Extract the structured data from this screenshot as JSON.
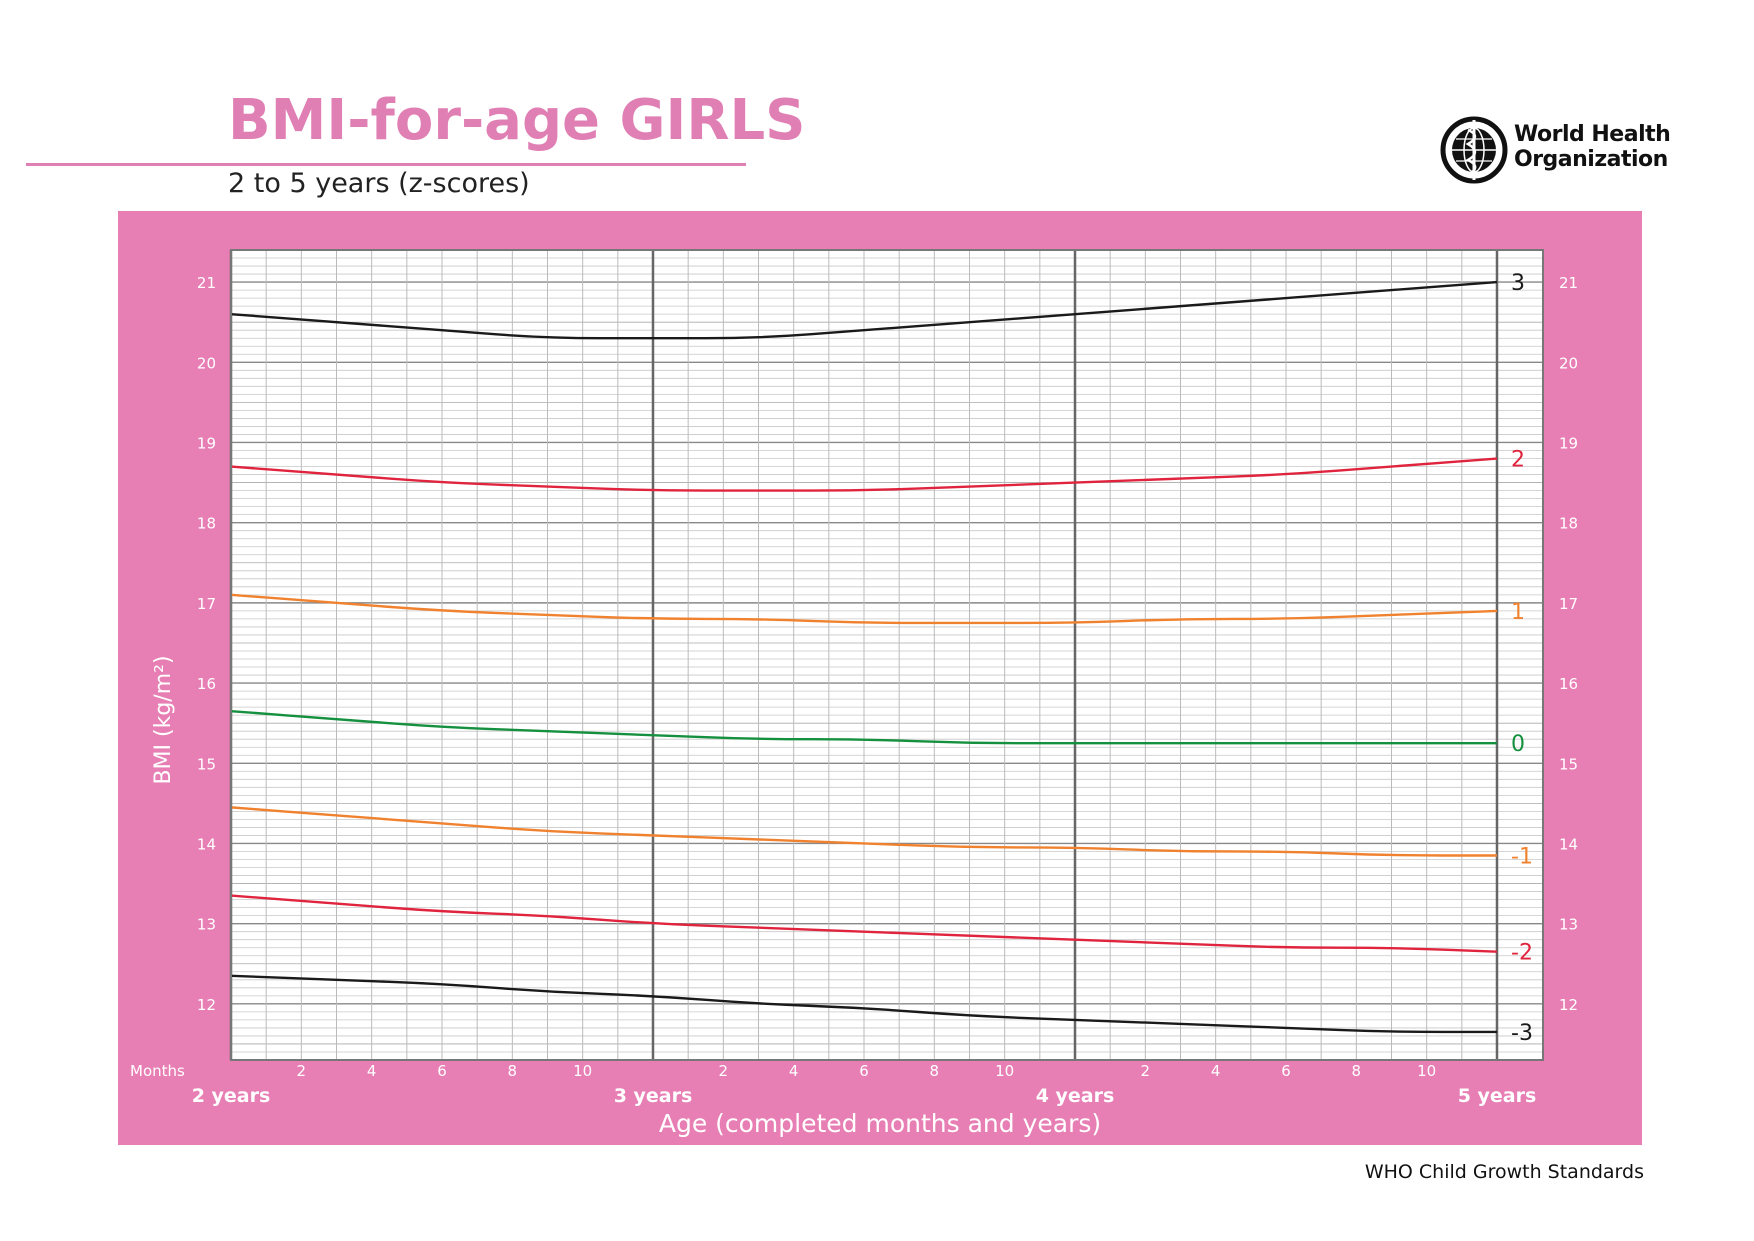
{
  "header": {
    "title": "BMI-for-age GIRLS",
    "subtitle": "2 to 5 years (z-scores)",
    "org_line1": "World Health",
    "org_line2": "Organization"
  },
  "footer": {
    "text": "WHO Child Growth Standards"
  },
  "colors": {
    "brand_pink": "#e07fb3",
    "panel_pink": "#e77fb4",
    "sd3": "#1a1a1a",
    "sd2": "#e0243e",
    "sd1": "#f0822f",
    "median": "#15903e"
  },
  "chart_data": {
    "type": "line",
    "title": "BMI-for-age GIRLS",
    "subtitle": "2 to 5 years (z-scores)",
    "ylabel": "BMI (kg/m²)",
    "xlabel": "Age (completed months and years)",
    "x_units_label": "Months",
    "ylim": [
      11.3,
      21.4
    ],
    "yticks": [
      12,
      13,
      14,
      15,
      16,
      17,
      18,
      19,
      20,
      21
    ],
    "xlim": [
      24,
      60
    ],
    "year_ticks": [
      {
        "month": 24,
        "label": "2 years"
      },
      {
        "month": 36,
        "label": "3 years"
      },
      {
        "month": 48,
        "label": "4 years"
      },
      {
        "month": 60,
        "label": "5 years"
      }
    ],
    "month_ticks": [
      2,
      4,
      6,
      8,
      10
    ],
    "grid": true,
    "x": [
      24,
      27,
      30,
      33,
      36,
      39,
      42,
      45,
      48,
      51,
      54,
      57,
      60
    ],
    "series": [
      {
        "name": "3",
        "color": "#1a1a1a",
        "values": [
          20.6,
          20.5,
          20.4,
          20.3,
          20.3,
          20.3,
          20.4,
          20.5,
          20.6,
          20.7,
          20.8,
          20.9,
          21.0
        ]
      },
      {
        "name": "2",
        "color": "#e0243e",
        "values": [
          18.7,
          18.6,
          18.5,
          18.45,
          18.4,
          18.4,
          18.4,
          18.45,
          18.5,
          18.55,
          18.6,
          18.7,
          18.8
        ]
      },
      {
        "name": "1",
        "color": "#f0822f",
        "values": [
          17.1,
          17.0,
          16.9,
          16.85,
          16.8,
          16.8,
          16.75,
          16.75,
          16.75,
          16.8,
          16.8,
          16.85,
          16.9
        ]
      },
      {
        "name": "0",
        "color": "#15903e",
        "values": [
          15.65,
          15.55,
          15.45,
          15.4,
          15.35,
          15.3,
          15.3,
          15.25,
          15.25,
          15.25,
          15.25,
          15.25,
          15.25
        ]
      },
      {
        "name": "-1",
        "color": "#f0822f",
        "values": [
          14.45,
          14.35,
          14.25,
          14.15,
          14.1,
          14.05,
          14.0,
          13.95,
          13.95,
          13.9,
          13.9,
          13.85,
          13.85
        ]
      },
      {
        "name": "-2",
        "color": "#e0243e",
        "values": [
          13.35,
          13.25,
          13.15,
          13.1,
          13.0,
          12.95,
          12.9,
          12.85,
          12.8,
          12.75,
          12.7,
          12.7,
          12.65
        ]
      },
      {
        "name": "-3",
        "color": "#1a1a1a",
        "values": [
          12.35,
          12.3,
          12.25,
          12.15,
          12.1,
          12.0,
          11.95,
          11.85,
          11.8,
          11.75,
          11.7,
          11.65,
          11.65
        ]
      }
    ]
  }
}
